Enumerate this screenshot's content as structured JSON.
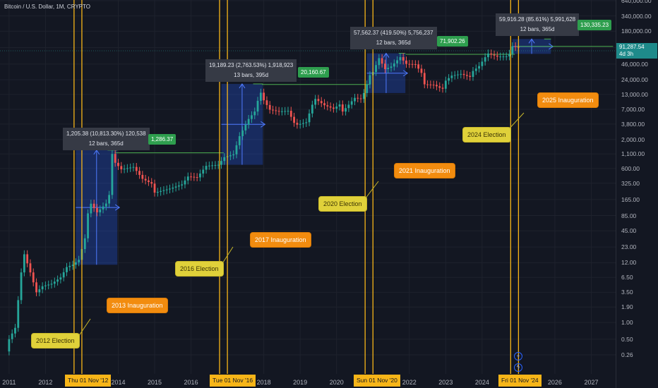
{
  "title": "Bitcoin / U.S. Dollar, 1M, CRYPTO",
  "price_label": {
    "value": "91,287.54",
    "countdown": "4d 3h"
  },
  "chart_data": {
    "type": "candlestick",
    "title": "Bitcoin / U.S. Dollar, 1M, CRYPTO",
    "y_scale": "log",
    "ylim": [
      0.2,
      640000
    ],
    "xlim": [
      "2010-09",
      "2027-08"
    ],
    "y_ticks": [
      "640,000.00",
      "340,000.00",
      "180,000.00",
      "91,287.54",
      "46,000.00",
      "24,000.00",
      "13,000.00",
      "7,000.00",
      "3,800.00",
      "2,000.00",
      "1,100.00",
      "600.00",
      "325.00",
      "165.00",
      "85.00",
      "45.00",
      "23.00",
      "12.00",
      "6.50",
      "3.50",
      "1.90",
      "1.00",
      "0.50",
      "0.26"
    ],
    "x_ticks": [
      "2011",
      "2012",
      "2014",
      "2015",
      "2016",
      "2018",
      "2019",
      "2020",
      "2022",
      "2023",
      "2024",
      "2026",
      "2027"
    ],
    "vertical_markers": [
      {
        "date": "2012-11",
        "label": "Thu 01 Nov '12"
      },
      {
        "date": "2016-11",
        "label": "Tue 01 Nov '16"
      },
      {
        "date": "2020-11",
        "label": "Sun 01 Nov '20"
      },
      {
        "date": "2024-11",
        "label": "Fri 01 Nov '24"
      }
    ],
    "secondary_verticals": [
      "2013-01",
      "2017-01",
      "2021-01",
      "2025-01"
    ],
    "monthly_close": [
      [
        "2011-01",
        0.5
      ],
      [
        "2011-03",
        0.8
      ],
      [
        "2011-05",
        8
      ],
      [
        "2011-06",
        17
      ],
      [
        "2011-08",
        8
      ],
      [
        "2011-10",
        3.5
      ],
      [
        "2011-12",
        4.5
      ],
      [
        "2012-03",
        5
      ],
      [
        "2012-06",
        6.5
      ],
      [
        "2012-08",
        10
      ],
      [
        "2012-10",
        11
      ],
      [
        "2012-12",
        13.5
      ],
      [
        "2013-02",
        33
      ],
      [
        "2013-03",
        93
      ],
      [
        "2013-04",
        139
      ],
      [
        "2013-06",
        97
      ],
      [
        "2013-09",
        140
      ],
      [
        "2013-10",
        200
      ],
      [
        "2013-11",
        1100
      ],
      [
        "2013-12",
        760
      ],
      [
        "2014-02",
        580
      ],
      [
        "2014-06",
        640
      ],
      [
        "2014-09",
        390
      ],
      [
        "2014-12",
        320
      ],
      [
        "2015-01",
        220
      ],
      [
        "2015-06",
        260
      ],
      [
        "2015-10",
        310
      ],
      [
        "2015-12",
        430
      ],
      [
        "2016-03",
        415
      ],
      [
        "2016-06",
        670
      ],
      [
        "2016-10",
        700
      ],
      [
        "2016-12",
        960
      ],
      [
        "2017-03",
        1080
      ],
      [
        "2017-05",
        2300
      ],
      [
        "2017-08",
        4700
      ],
      [
        "2017-10",
        6400
      ],
      [
        "2017-11",
        10000
      ],
      [
        "2017-12",
        14000
      ],
      [
        "2018-01",
        10200
      ],
      [
        "2018-03",
        6900
      ],
      [
        "2018-06",
        6400
      ],
      [
        "2018-09",
        6600
      ],
      [
        "2018-11",
        4000
      ],
      [
        "2018-12",
        3700
      ],
      [
        "2019-03",
        4100
      ],
      [
        "2019-05",
        8500
      ],
      [
        "2019-06",
        10800
      ],
      [
        "2019-09",
        8300
      ],
      [
        "2019-12",
        7200
      ],
      [
        "2020-02",
        8600
      ],
      [
        "2020-03",
        6400
      ],
      [
        "2020-07",
        11300
      ],
      [
        "2020-09",
        10800
      ],
      [
        "2020-10",
        13800
      ],
      [
        "2020-11",
        19700
      ],
      [
        "2020-12",
        29000
      ],
      [
        "2021-01",
        33100
      ],
      [
        "2021-03",
        58800
      ],
      [
        "2021-05",
        37300
      ],
      [
        "2021-07",
        41500
      ],
      [
        "2021-10",
        61300
      ],
      [
        "2021-12",
        46300
      ],
      [
        "2022-03",
        45500
      ],
      [
        "2022-05",
        31800
      ],
      [
        "2022-06",
        19800
      ],
      [
        "2022-09",
        19400
      ],
      [
        "2022-11",
        17200
      ],
      [
        "2022-12",
        16500
      ],
      [
        "2023-01",
        23100
      ],
      [
        "2023-03",
        28500
      ],
      [
        "2023-06",
        30500
      ],
      [
        "2023-09",
        27000
      ],
      [
        "2023-10",
        34500
      ],
      [
        "2023-12",
        42300
      ],
      [
        "2024-02",
        61200
      ],
      [
        "2024-03",
        71300
      ],
      [
        "2024-06",
        62700
      ],
      [
        "2024-09",
        63300
      ],
      [
        "2024-10",
        70300
      ],
      [
        "2024-11",
        96400
      ],
      [
        "2024-12",
        93400
      ],
      [
        "2025-01",
        91287.54
      ]
    ],
    "annotations": {
      "measures": [
        {
          "line1": "1,205.38 (10,813.30%) 120,538",
          "line2": "12 bars, 365d",
          "target": "1,286.37"
        },
        {
          "line1": "19,189.23 (2,763.53%) 1,918,923",
          "line2": "13 bars, 395d",
          "target": "20,160.67"
        },
        {
          "line1": "57,562.37 (419.50%) 5,756,237",
          "line2": "12 bars, 365d",
          "target": "71,902.26"
        },
        {
          "line1": "59,916.28 (85.61%) 5,991,628",
          "line2": "12 bars, 365d",
          "target": "130,335.23"
        }
      ],
      "elections": [
        "2012 Election",
        "2016 Election",
        "2020 Election",
        "2024 Election"
      ],
      "inaugurations": [
        "2013 Inauguration",
        "2017 Inauguration",
        "2021 Inauguration",
        "2025 Inauguration"
      ]
    }
  },
  "colors": {
    "background": "#131722",
    "up": "#26a69a",
    "down": "#ef5350",
    "marker": "#f7b518",
    "election": "#e0d13a",
    "inauguration": "#f28c0f",
    "measure": "#2962ff",
    "target": "#4caf50"
  }
}
